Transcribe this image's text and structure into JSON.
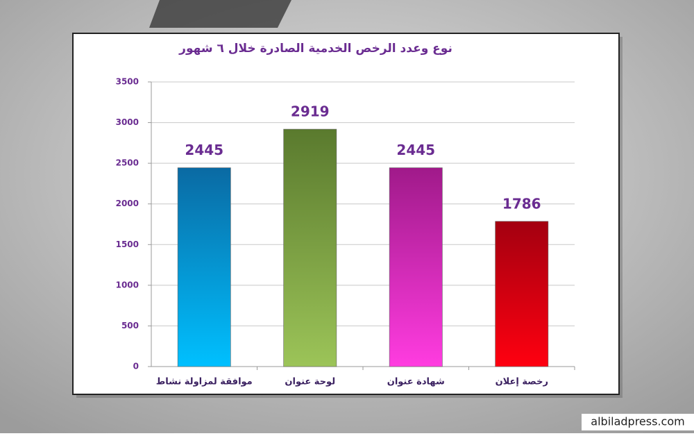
{
  "chart_data": {
    "type": "bar",
    "title": "نوع وعدد الرخص الخدمية الصادرة خلال ٦ شهور",
    "categories": [
      "موافقة لمزاولة نشاط",
      "لوحة عنوان",
      "شهادة عنوان",
      "رخصة إعلان"
    ],
    "values": [
      2445,
      2919,
      2445,
      1786
    ],
    "colors": [
      [
        "#0a6aa3",
        "#00c0ff"
      ],
      [
        "#5a7a2e",
        "#9cc458"
      ],
      [
        "#a01a8a",
        "#ff3ce0"
      ],
      [
        "#a30010",
        "#ff0010"
      ]
    ],
    "ylim": [
      0,
      3500
    ],
    "yticks": [
      0,
      500,
      1000,
      1500,
      2000,
      2500,
      3000,
      3500
    ],
    "grid": true
  },
  "watermark": "albiladpress.com"
}
